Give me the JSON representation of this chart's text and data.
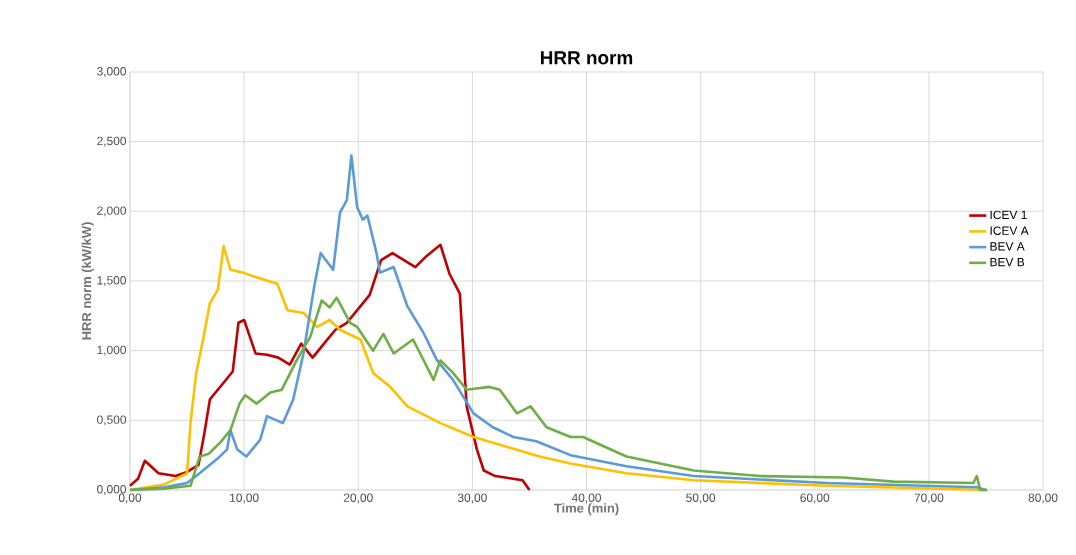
{
  "chart_data": {
    "type": "line",
    "title": "HRR norm",
    "xlabel": "Time (min)",
    "ylabel": "HRR norm (kW/kW)",
    "xlim": [
      0,
      80
    ],
    "ylim": [
      0,
      3
    ],
    "xticks": [
      {
        "value": 0,
        "label": "0,00"
      },
      {
        "value": 10,
        "label": "10,00"
      },
      {
        "value": 20,
        "label": "20,00"
      },
      {
        "value": 30,
        "label": "30,00"
      },
      {
        "value": 40,
        "label": "40,00"
      },
      {
        "value": 50,
        "label": "50,00"
      },
      {
        "value": 60,
        "label": "60,00"
      },
      {
        "value": 70,
        "label": "70,00"
      },
      {
        "value": 80,
        "label": "80,00"
      }
    ],
    "yticks": [
      {
        "value": 0,
        "label": "0,000"
      },
      {
        "value": 0.5,
        "label": "0,500"
      },
      {
        "value": 1,
        "label": "1,000"
      },
      {
        "value": 1.5,
        "label": "1,500"
      },
      {
        "value": 2,
        "label": "2,000"
      },
      {
        "value": 2.5,
        "label": "2,500"
      },
      {
        "value": 3,
        "label": "3,000"
      }
    ],
    "grid": true,
    "legend": "right",
    "marker": "none",
    "line_style": "solid",
    "series": [
      {
        "name": "ICEV 1",
        "color": "#c00000",
        "x": [
          0,
          0.7,
          1.3,
          2.5,
          4,
          5,
          6,
          6.5,
          7,
          8,
          9,
          9.5,
          10,
          11,
          12,
          13,
          14,
          15,
          16,
          17,
          18,
          19,
          20,
          21,
          22,
          23,
          24,
          25,
          26,
          27.2,
          28,
          28.9,
          29.5,
          30.4,
          31,
          32,
          34.4,
          35
        ],
        "values": [
          0.03,
          0.08,
          0.21,
          0.12,
          0.1,
          0.13,
          0.18,
          0.4,
          0.65,
          0.75,
          0.85,
          1.2,
          1.22,
          0.98,
          0.97,
          0.95,
          0.9,
          1.05,
          0.95,
          1.05,
          1.15,
          1.2,
          1.3,
          1.4,
          1.65,
          1.7,
          1.65,
          1.6,
          1.68,
          1.76,
          1.55,
          1.41,
          0.6,
          0.29,
          0.14,
          0.1,
          0.07,
          0
        ]
      },
      {
        "name": "ICEV A",
        "color": "#ffc000",
        "x": [
          0,
          3,
          4.5,
          5,
          5.3,
          5.8,
          6.4,
          7,
          7.7,
          8.2,
          8.8,
          9.9,
          11.7,
          12.9,
          13.8,
          15.2,
          16.4,
          17.5,
          18.4,
          20.2,
          21.3,
          22.8,
          24.3,
          26,
          27.2,
          30.1,
          33,
          35.9,
          38.6,
          43.5,
          49.4,
          61.1,
          75.1
        ],
        "values": [
          0,
          0.04,
          0.1,
          0.12,
          0.48,
          0.84,
          1.08,
          1.34,
          1.44,
          1.75,
          1.58,
          1.56,
          1.51,
          1.48,
          1.29,
          1.27,
          1.17,
          1.22,
          1.15,
          1.08,
          0.84,
          0.74,
          0.6,
          0.53,
          0.48,
          0.38,
          0.31,
          0.24,
          0.19,
          0.12,
          0.07,
          0.03,
          0
        ]
      },
      {
        "name": "BEV A",
        "color": "#5b9bd5",
        "x": [
          0,
          3,
          5,
          5.8,
          7.6,
          8.5,
          8.8,
          9.4,
          10.2,
          11.4,
          12,
          13.4,
          14.3,
          15.2,
          16.1,
          16.7,
          17.8,
          18.4,
          19,
          19.4,
          19.9,
          20.4,
          20.8,
          21.6,
          21.9,
          23.1,
          24.3,
          25.7,
          26.9,
          28.3,
          30.1,
          31.8,
          33.6,
          35.6,
          38.6,
          43.5,
          49.4,
          61.1,
          74.2,
          75
        ],
        "values": [
          0,
          0.02,
          0.05,
          0.1,
          0.22,
          0.29,
          0.43,
          0.29,
          0.24,
          0.36,
          0.53,
          0.48,
          0.65,
          0.98,
          1.44,
          1.7,
          1.58,
          1.99,
          2.08,
          2.4,
          2.03,
          1.94,
          1.97,
          1.7,
          1.56,
          1.6,
          1.32,
          1.13,
          0.93,
          0.79,
          0.55,
          0.45,
          0.38,
          0.35,
          0.25,
          0.17,
          0.1,
          0.05,
          0.02,
          0
        ]
      },
      {
        "name": "BEV B",
        "color": "#70ad47",
        "x": [
          0,
          3,
          5.3,
          6.1,
          6.9,
          7.9,
          8.8,
          9.6,
          10.1,
          11.1,
          12.3,
          13.3,
          14.6,
          15.8,
          16.8,
          17.5,
          18.1,
          19.3,
          19.9,
          21.3,
          22.2,
          23.1,
          24.8,
          26.6,
          27.2,
          28.3,
          29.5,
          31.5,
          32.4,
          33.9,
          35.1,
          36.5,
          38.6,
          39.7,
          43.5,
          49.4,
          55.2,
          62.5,
          66.9,
          73.9,
          74.2,
          74.5,
          75.1
        ],
        "values": [
          0,
          0.01,
          0.03,
          0.24,
          0.26,
          0.34,
          0.43,
          0.62,
          0.68,
          0.62,
          0.7,
          0.72,
          0.93,
          1.1,
          1.36,
          1.31,
          1.38,
          1.2,
          1.17,
          1.0,
          1.12,
          0.98,
          1.08,
          0.79,
          0.93,
          0.84,
          0.72,
          0.74,
          0.72,
          0.55,
          0.6,
          0.45,
          0.38,
          0.38,
          0.24,
          0.14,
          0.1,
          0.09,
          0.06,
          0.05,
          0.1,
          0,
          0
        ]
      }
    ]
  }
}
